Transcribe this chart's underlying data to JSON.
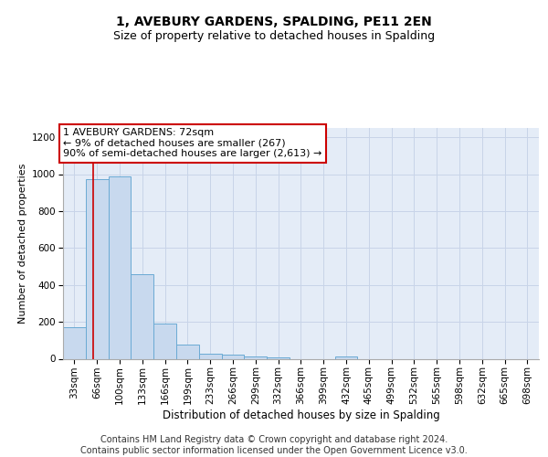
{
  "title1": "1, AVEBURY GARDENS, SPALDING, PE11 2EN",
  "title2": "Size of property relative to detached houses in Spalding",
  "xlabel": "Distribution of detached houses by size in Spalding",
  "ylabel": "Number of detached properties",
  "categories": [
    "33sqm",
    "66sqm",
    "100sqm",
    "133sqm",
    "166sqm",
    "199sqm",
    "233sqm",
    "266sqm",
    "299sqm",
    "332sqm",
    "366sqm",
    "399sqm",
    "432sqm",
    "465sqm",
    "499sqm",
    "532sqm",
    "565sqm",
    "598sqm",
    "632sqm",
    "665sqm",
    "698sqm"
  ],
  "values": [
    170,
    975,
    990,
    460,
    190,
    78,
    28,
    22,
    14,
    8,
    0,
    0,
    14,
    0,
    0,
    0,
    0,
    0,
    0,
    0,
    0
  ],
  "bar_color": "#c8d9ee",
  "bar_edge_color": "#6aaad4",
  "red_line_x": 0.82,
  "annotation_text": "1 AVEBURY GARDENS: 72sqm\n← 9% of detached houses are smaller (267)\n90% of semi-detached houses are larger (2,613) →",
  "annotation_box_color": "#ffffff",
  "annotation_box_edge_color": "#cc0000",
  "red_line_color": "#cc0000",
  "grid_color": "#c8d4e8",
  "background_color": "#e4ecf7",
  "ylim": [
    0,
    1250
  ],
  "yticks": [
    0,
    200,
    400,
    600,
    800,
    1000,
    1200
  ],
  "footer_text": "Contains HM Land Registry data © Crown copyright and database right 2024.\nContains public sector information licensed under the Open Government Licence v3.0.",
  "title1_fontsize": 10,
  "title2_fontsize": 9,
  "xlabel_fontsize": 8.5,
  "ylabel_fontsize": 8,
  "tick_fontsize": 7.5,
  "annotation_fontsize": 8,
  "footer_fontsize": 7
}
